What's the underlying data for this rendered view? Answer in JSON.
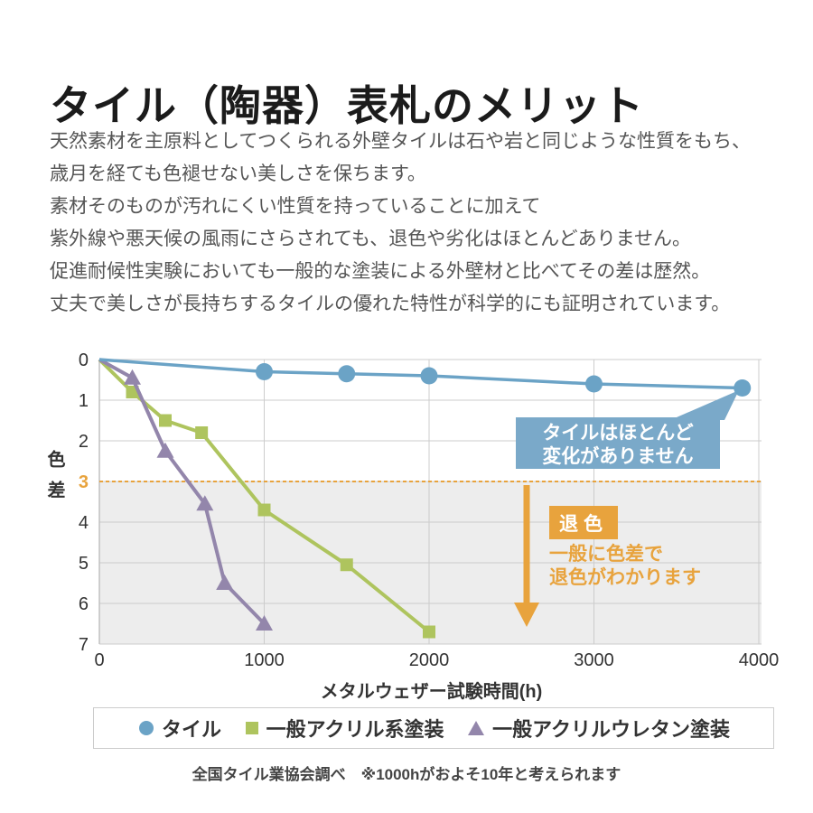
{
  "page": {
    "title": "タイル（陶器）表札のメリット",
    "body_lines": [
      "天然素材を主原料としてつくられる外壁タイルは石や岩と同じような性質をもち、",
      "歳月を経ても色褪せない美しさを保ちます。",
      "素材そのものが汚れにくい性質を持っていることに加えて",
      "紫外線や悪天候の風雨にさらされても、退色や劣化はほとんどありません。",
      "促進耐候性実験においても一般的な塗装による外壁材と比べてその差は歴然。",
      "丈夫で美しさが長持ちするタイルの優れた特性が科学的にも証明されています。"
    ]
  },
  "colors": {
    "accent_orange": "#e8a33d",
    "callout_blue": "#7aa9c9",
    "grid": "#cccccc",
    "axis_line": "#c0c0c0",
    "shade_below_threshold": "#ededed",
    "axis_text": "#333333"
  },
  "chart_data": {
    "type": "line",
    "xlabel": "メタルウェザー試験時間(h)",
    "ylabel": "色差",
    "xlim": [
      0,
      4000
    ],
    "ylim": [
      0,
      7
    ],
    "y_axis_inverted": true,
    "x_ticks": [
      0,
      1000,
      2000,
      3000,
      4000
    ],
    "y_ticks": [
      0,
      1,
      2,
      3,
      4,
      5,
      6,
      7
    ],
    "threshold": {
      "y": 3,
      "style": "dotted",
      "color": "#e8a33d"
    },
    "series": [
      {
        "name": "タイル",
        "marker": "circle",
        "color": "#6ba3c6",
        "points": [
          [
            0,
            0
          ],
          [
            1000,
            0.3
          ],
          [
            1500,
            0.35
          ],
          [
            2000,
            0.4
          ],
          [
            3000,
            0.6
          ],
          [
            3900,
            0.7
          ]
        ]
      },
      {
        "name": "一般アクリル系塗装",
        "marker": "square",
        "color": "#aec45e",
        "points": [
          [
            0,
            0
          ],
          [
            200,
            0.8
          ],
          [
            400,
            1.5
          ],
          [
            620,
            1.8
          ],
          [
            1000,
            3.7
          ],
          [
            1500,
            5.05
          ],
          [
            2000,
            6.7
          ]
        ]
      },
      {
        "name": "一般アクリルウレタン塗装",
        "marker": "triangle",
        "color": "#9386ab",
        "points": [
          [
            0,
            0
          ],
          [
            200,
            0.45
          ],
          [
            400,
            2.25
          ],
          [
            640,
            3.55
          ],
          [
            760,
            5.5
          ],
          [
            1000,
            6.5
          ]
        ]
      }
    ],
    "annotations": {
      "tile_callout_lines": [
        "タイルはほとんど",
        "変化がありません"
      ],
      "fade_badge": "退色",
      "fade_note_lines": [
        "一般に色差で",
        "退色がわかります"
      ]
    },
    "footnote": "全国タイル業協会調べ　※1000hがおよそ10年と考えられます"
  }
}
